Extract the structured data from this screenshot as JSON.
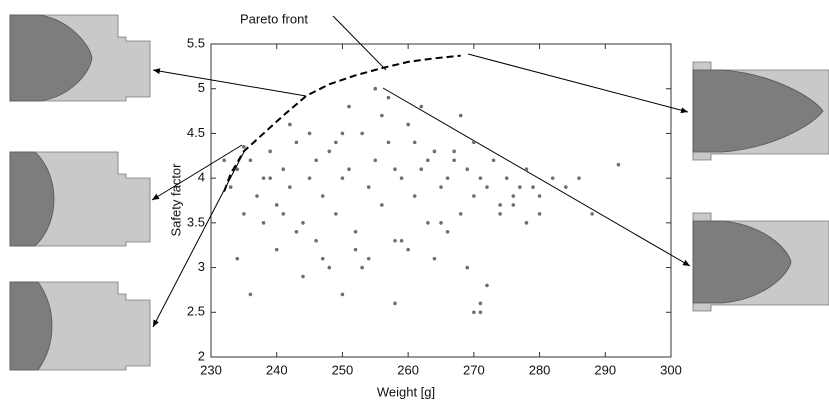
{
  "chart_data": {
    "type": "scatter",
    "xlabel": "Weight [g]",
    "ylabel": "Safety factor",
    "annotation": "Pareto front",
    "xlim": [
      230,
      300
    ],
    "xticks": [
      230,
      240,
      250,
      260,
      270,
      280,
      290,
      300
    ],
    "ylim": [
      2,
      5.5
    ],
    "yticks": [
      2,
      2.5,
      3,
      3.5,
      4,
      4.5,
      5,
      5.5
    ],
    "color": "#6e6e6e",
    "points": {
      "x": [
        233,
        234,
        235,
        236,
        237,
        238,
        239,
        240,
        241,
        242,
        243,
        244,
        245,
        246,
        247,
        248,
        249,
        250,
        251,
        252,
        253,
        254,
        255,
        256,
        257,
        258,
        259,
        260,
        261,
        262,
        263,
        264,
        265,
        266,
        267,
        268,
        269,
        270,
        271,
        272,
        273,
        274,
        275,
        276,
        277,
        278,
        279,
        280,
        282,
        284,
        232,
        234,
        236,
        238,
        240,
        242,
        244,
        246,
        248,
        250,
        252,
        254,
        256,
        258,
        260,
        262,
        264,
        266,
        268,
        270,
        272,
        274,
        276,
        278,
        280,
        286,
        288,
        292,
        241,
        243,
        245,
        247,
        249,
        251,
        253,
        257,
        259,
        261,
        263,
        265,
        267,
        269,
        271,
        235,
        239,
        255,
        258,
        270,
        271,
        250
      ],
      "y": [
        3.9,
        4.1,
        3.6,
        4.2,
        3.8,
        4.0,
        4.3,
        3.7,
        4.1,
        3.9,
        4.4,
        3.5,
        4.0,
        4.2,
        3.8,
        4.3,
        3.6,
        4.0,
        4.1,
        3.4,
        4.5,
        3.9,
        4.2,
        3.7,
        4.4,
        3.3,
        4.0,
        4.6,
        3.8,
        4.1,
        3.5,
        4.3,
        3.9,
        4.0,
        4.2,
        3.6,
        4.1,
        3.8,
        4.0,
        3.9,
        4.2,
        3.7,
        4.0,
        3.8,
        3.9,
        4.1,
        3.9,
        3.8,
        4.0,
        3.9,
        4.2,
        3.1,
        2.7,
        3.5,
        3.2,
        4.6,
        2.9,
        3.3,
        3.0,
        4.5,
        3.2,
        3.1,
        4.7,
        2.6,
        3.2,
        4.8,
        3.1,
        3.4,
        4.7,
        2.5,
        2.8,
        3.6,
        3.7,
        3.5,
        3.6,
        4.0,
        3.6,
        4.15,
        3.6,
        3.4,
        4.5,
        3.1,
        4.4,
        4.8,
        3.0,
        4.9,
        3.3,
        4.4,
        4.2,
        3.5,
        4.3,
        3.0,
        2.5,
        4.35,
        4.0,
        5.0,
        4.1,
        4.4,
        2.6,
        2.7
      ]
    },
    "pareto_front": {
      "x": [
        232,
        233,
        235,
        238,
        241,
        244.5,
        248,
        252,
        256,
        260,
        264,
        268
      ],
      "y": [
        3.85,
        4.05,
        4.3,
        4.5,
        4.7,
        4.92,
        5.05,
        5.15,
        5.23,
        5.3,
        5.34,
        5.37
      ]
    }
  }
}
